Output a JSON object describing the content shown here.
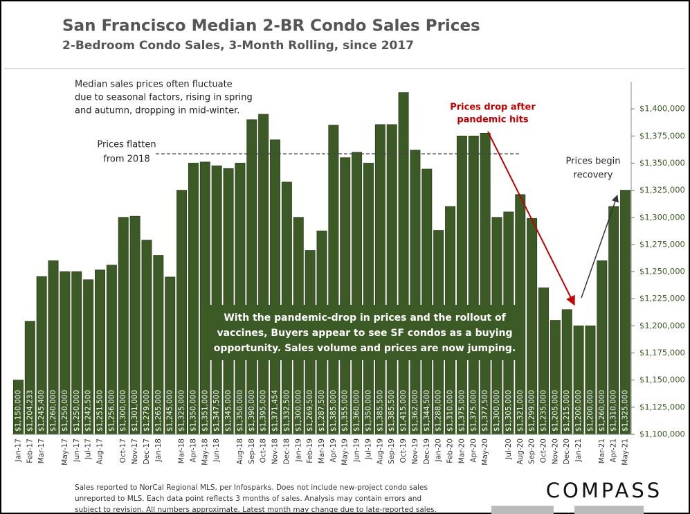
{
  "chart_data": {
    "type": "bar",
    "title": "San Francisco Median 2-BR Condo Sales Prices",
    "subtitle": "2-Bedroom Condo Sales, 3-Month Rolling, since 2017",
    "categories": [
      "Jan-17",
      "Feb-17",
      "Mar-17",
      null,
      "May-17",
      "Jun-17",
      "Jul-17",
      "Aug-17",
      null,
      "Oct-17",
      "Nov-17",
      "Dec-17",
      "Jan-18",
      null,
      "Mar-18",
      "Apr-18",
      "May-18",
      "Jun-18",
      null,
      "Aug-18",
      "Sep-18",
      "Oct-18",
      "Nov-18",
      "Dec-18",
      "Jan-19",
      "Feb-19",
      "Mar-19",
      "Apr-19",
      "May-19",
      "Jun-19",
      "Jul-19",
      "Aug-19",
      "Sep-19",
      "Oct-19",
      "Nov-19",
      "Dec-19",
      "Jan-20",
      "Feb-20",
      "Mar-20",
      "Apr-20",
      "May-20",
      null,
      "Jul-20",
      "Aug-20",
      "Sep-20",
      "Oct-20",
      "Nov-20",
      "Dec-20",
      "Jan-21",
      null,
      "Mar-21",
      "Apr-21",
      "May-21"
    ],
    "values": [
      1150000,
      1204233,
      1245400,
      1260000,
      1250000,
      1250000,
      1242500,
      1251500,
      1256000,
      1300000,
      1301000,
      1279000,
      1265000,
      1245000,
      1325000,
      1350000,
      1351000,
      1347500,
      1345000,
      1350000,
      1390000,
      1395000,
      1371454,
      1332500,
      1300000,
      1269500,
      1287500,
      1385000,
      1355000,
      1360000,
      1350000,
      1385500,
      1385500,
      1415000,
      1362000,
      1344500,
      1288000,
      1310000,
      1375000,
      1375000,
      1377500,
      1300000,
      1305000,
      1321000,
      1299000,
      1235000,
      1205000,
      1215000,
      1200000,
      1200000,
      1260000,
      1310000,
      1325000
    ],
    "value_labels": [
      "$1,150,000",
      "$1,204,233",
      "$1,245,400",
      "$1,260,000",
      "$1,250,000",
      "$1,250,000",
      "$1,242,500",
      "$1,251,500",
      "$1,256,000",
      "$1,300,000",
      "$1,301,000",
      "$1,279,000",
      "$1,265,000",
      "$1,245,000",
      "$1,325,000",
      "$1,350,000",
      "$1,351,000",
      "$1,347,500",
      "$1,345,000",
      "$1,350,000",
      "$1,390,000",
      "$1,395,000",
      "$1,371,454",
      "$1,332,500",
      "$1,300,000",
      "$1,269,500",
      "$1,287,500",
      "$1,385,000",
      "$1,355,000",
      "$1,360,000",
      "$1,350,000",
      "$1,385,500",
      "$1,385,500",
      "$1,415,000",
      "$1,362,000",
      "$1,344,500",
      "$1,288,000",
      "$1,310,000",
      "$1,375,000",
      "$1,375,000",
      "$1,377,500",
      "$1,300,000",
      "$1,305,000",
      "$1,321,000",
      "$1,299,000",
      "$1,235,000",
      "$1,205,000",
      "$1,215,000",
      "$1,200,000",
      "$1,200,000",
      "$1,260,000",
      "$1,310,000",
      "$1,325,000"
    ],
    "color": "#3b5a25",
    "ylim": [
      1100000,
      1425000
    ],
    "yticks": [
      {
        "value": 1100000,
        "label": "$1,100,000"
      },
      {
        "value": 1125000,
        "label": "$1,125,000"
      },
      {
        "value": 1150000,
        "label": "$1,150,000"
      },
      {
        "value": 1175000,
        "label": "$1,175,000"
      },
      {
        "value": 1200000,
        "label": "$1,200,000"
      },
      {
        "value": 1225000,
        "label": "$1,225,000"
      },
      {
        "value": 1250000,
        "label": "$1,250,000"
      },
      {
        "value": 1275000,
        "label": "$1,275,000"
      },
      {
        "value": 1300000,
        "label": "$1,300,000"
      },
      {
        "value": 1325000,
        "label": "$1,325,000"
      },
      {
        "value": 1350000,
        "label": "$1,350,000"
      },
      {
        "value": 1375000,
        "label": "$1,375,000"
      },
      {
        "value": 1400000,
        "label": "$1,400,000"
      }
    ],
    "annotations": {
      "note": [
        "Median sales prices often fluctuate",
        "due to seasonal factors, rising in spring",
        "and autumn, dropping in mid-winter."
      ],
      "flatten": [
        "Prices flatten",
        "from 2018"
      ],
      "drop": [
        "Prices drop after",
        "pandemic hits"
      ],
      "recovery": [
        "Prices begin",
        "recovery"
      ],
      "box": [
        "With the pandemic-drop in prices and the rollout of",
        "vaccines, Buyers appear to see SF condos as a buying",
        "opportunity. Sales volume and prices are now jumping."
      ]
    },
    "source": [
      "Sales reported to NorCal Regional MLS, per Infosparks. Does not include new-project condo sales",
      "unreported to MLS. Each data point reflects 3 months of sales. Analysis may contain errors and",
      "subject to revision. All numbers approximate. Latest month may change due to late-reported sales."
    ],
    "logo": "COMPASS"
  }
}
